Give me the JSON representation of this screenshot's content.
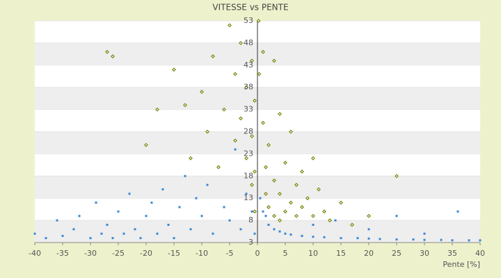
{
  "chart_data": {
    "type": "scatter",
    "title": "VITESSE vs PENTE",
    "x_label": "Pente [%]",
    "xlim": [
      -40,
      40
    ],
    "xticks": [
      -40,
      -35,
      -30,
      -25,
      -20,
      -15,
      -10,
      -5,
      0,
      5,
      10,
      15,
      20,
      25,
      30,
      35,
      40
    ],
    "ylim": [
      3,
      53
    ],
    "yticks": [
      3,
      8,
      13,
      18,
      23,
      28,
      33,
      38,
      43,
      48,
      53
    ],
    "grid": true,
    "series": [
      {
        "color": "#3a87d4",
        "x": [
          -40,
          -38,
          -36,
          -35,
          -33,
          -32,
          -30,
          -29,
          -28,
          -27,
          -26,
          -25,
          -24,
          -23,
          -22,
          -21,
          -20,
          -19,
          -18,
          -17,
          -16,
          -15,
          -14,
          -13,
          -12,
          -11,
          -10,
          -9,
          -8,
          -7,
          -6,
          -5,
          -4,
          -3,
          -2,
          -1,
          -0.5,
          0.5,
          1,
          1.5,
          2,
          3,
          4,
          5,
          6,
          8,
          10,
          12,
          15,
          18,
          20,
          22,
          25,
          28,
          30,
          33,
          35,
          38,
          40,
          14,
          20,
          25,
          36,
          10,
          30
        ],
        "y": [
          5,
          4,
          8,
          4.5,
          6,
          9,
          4,
          12,
          5,
          7,
          4,
          10,
          5,
          14,
          6,
          4,
          9,
          12,
          5,
          15,
          7,
          4,
          11,
          18,
          6,
          13,
          9,
          16,
          5,
          20,
          11,
          8,
          24,
          6,
          14,
          10,
          5,
          13,
          10,
          9,
          7,
          6,
          5.5,
          5,
          4.8,
          4.5,
          4.3,
          4.2,
          4,
          4,
          3.9,
          3.8,
          3.7,
          3.7,
          3.6,
          3.6,
          3.5,
          3.5,
          3.5,
          8,
          6,
          9,
          10,
          7,
          5
        ]
      },
      {
        "color": "#6b7a00",
        "x": [
          -27,
          -26,
          -15,
          -13,
          -12,
          -10,
          -9,
          -8,
          -7,
          -6,
          -5,
          -4,
          -4,
          -3,
          -3,
          -2,
          -2,
          -1,
          -1,
          -1,
          -0.5,
          -0.5,
          -0.5,
          1,
          1,
          1.5,
          1.5,
          2,
          2,
          3,
          3,
          3,
          4,
          4,
          4,
          5,
          5,
          6,
          6,
          7,
          7,
          8,
          8,
          9,
          10,
          10,
          11,
          12,
          13,
          15,
          17,
          20,
          25,
          -20,
          -18,
          0.3,
          0.2
        ],
        "y": [
          46,
          45,
          42,
          34,
          22,
          37,
          28,
          45,
          20,
          33,
          52,
          41,
          26,
          48,
          31,
          38,
          22,
          44,
          27,
          16,
          35,
          19,
          10,
          46,
          30,
          20,
          14,
          25,
          11,
          44,
          17,
          9,
          32,
          14,
          8,
          21,
          10,
          28,
          12,
          16,
          9,
          19,
          11,
          13,
          22,
          9,
          15,
          10,
          8,
          12,
          7,
          9,
          18,
          25,
          33,
          41,
          53
        ]
      }
    ]
  }
}
